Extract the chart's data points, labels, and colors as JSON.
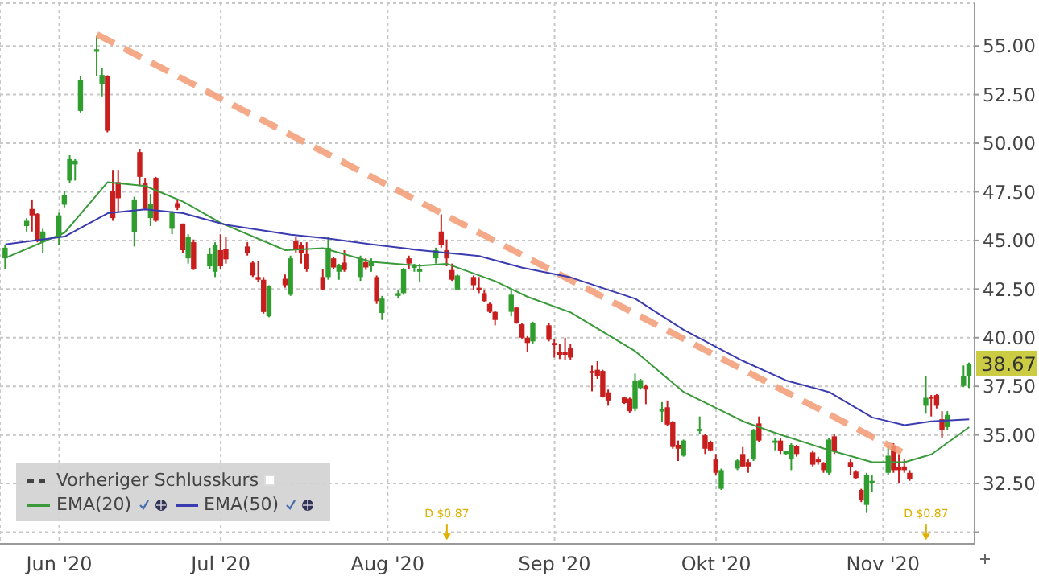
{
  "chart_data": {
    "type": "candlestick",
    "x": [
      "2020-05-22",
      "2020-05-26",
      "2020-05-27",
      "2020-05-28",
      "2020-05-29",
      "2020-06-01",
      "2020-06-02",
      "2020-06-03",
      "2020-06-04",
      "2020-06-05",
      "2020-06-08",
      "2020-06-09",
      "2020-06-10",
      "2020-06-11",
      "2020-06-12",
      "2020-06-15",
      "2020-06-16",
      "2020-06-17",
      "2020-06-18",
      "2020-06-19",
      "2020-06-22",
      "2020-06-23",
      "2020-06-24",
      "2020-06-25",
      "2020-06-26",
      "2020-06-29",
      "2020-06-30",
      "2020-07-01",
      "2020-07-02",
      "2020-07-06",
      "2020-07-07",
      "2020-07-08",
      "2020-07-09",
      "2020-07-10",
      "2020-07-13",
      "2020-07-14",
      "2020-07-15",
      "2020-07-16",
      "2020-07-17",
      "2020-07-20",
      "2020-07-21",
      "2020-07-22",
      "2020-07-23",
      "2020-07-24",
      "2020-07-27",
      "2020-07-28",
      "2020-07-29",
      "2020-07-30",
      "2020-07-31",
      "2020-08-03",
      "2020-08-04",
      "2020-08-05",
      "2020-08-06",
      "2020-08-07",
      "2020-08-10",
      "2020-08-11",
      "2020-08-12",
      "2020-08-13",
      "2020-08-14",
      "2020-08-17",
      "2020-08-18",
      "2020-08-19",
      "2020-08-20",
      "2020-08-21",
      "2020-08-24",
      "2020-08-25",
      "2020-08-26",
      "2020-08-27",
      "2020-08-28",
      "2020-08-31",
      "2020-09-01",
      "2020-09-02",
      "2020-09-03",
      "2020-09-04",
      "2020-09-08",
      "2020-09-09",
      "2020-09-10",
      "2020-09-11",
      "2020-09-14",
      "2020-09-15",
      "2020-09-16",
      "2020-09-17",
      "2020-09-18",
      "2020-09-21",
      "2020-09-22",
      "2020-09-23",
      "2020-09-24",
      "2020-09-25",
      "2020-09-28",
      "2020-09-29",
      "2020-09-30",
      "2020-10-01",
      "2020-10-02",
      "2020-10-05",
      "2020-10-06",
      "2020-10-07",
      "2020-10-08",
      "2020-10-09",
      "2020-10-12",
      "2020-10-13",
      "2020-10-14",
      "2020-10-15",
      "2020-10-16",
      "2020-10-19",
      "2020-10-20",
      "2020-10-21",
      "2020-10-22",
      "2020-10-23",
      "2020-10-26",
      "2020-10-27",
      "2020-10-28",
      "2020-10-29",
      "2020-10-30",
      "2020-11-02",
      "2020-11-03",
      "2020-11-04",
      "2020-11-05",
      "2020-11-06",
      "2020-11-09",
      "2020-11-10",
      "2020-11-11",
      "2020-11-12",
      "2020-11-13",
      "2020-11-16",
      "2020-11-17"
    ],
    "ohlc": [
      [
        44.08,
        44.77,
        43.53,
        44.63
      ],
      [
        45.74,
        46.15,
        45.46,
        46.01
      ],
      [
        46.62,
        47.11,
        45.46,
        46.29
      ],
      [
        46.37,
        46.4,
        44.91,
        44.99
      ],
      [
        44.91,
        45.6,
        44.36,
        45.46
      ],
      [
        45.18,
        46.43,
        44.77,
        46.29
      ],
      [
        46.84,
        47.53,
        46.7,
        47.34
      ],
      [
        48.08,
        49.38,
        47.94,
        49.18
      ],
      [
        48.91,
        49.18,
        48.08,
        49.1
      ],
      [
        51.66,
        53.46,
        51.58,
        53.24
      ],
      [
        54.7,
        55.52,
        53.46,
        54.83
      ],
      [
        53.04,
        53.87,
        52.41,
        53.51
      ],
      [
        53.46,
        53.5,
        50.56,
        50.64
      ],
      [
        47.53,
        48.63,
        46.01,
        46.15
      ],
      [
        48.0,
        48.63,
        46.43,
        47.17
      ],
      [
        45.41,
        47.25,
        44.69,
        47.11
      ],
      [
        49.54,
        49.71,
        47.8,
        48.27
      ],
      [
        47.94,
        48.22,
        46.56,
        46.62
      ],
      [
        46.15,
        47.39,
        45.74,
        46.89
      ],
      [
        48.22,
        48.27,
        45.96,
        46.01
      ],
      [
        45.6,
        46.51,
        45.32,
        46.43
      ],
      [
        46.92,
        47.11,
        46.56,
        46.7
      ],
      [
        45.87,
        45.87,
        44.36,
        44.5
      ],
      [
        44.08,
        45.32,
        43.81,
        45.18
      ],
      [
        44.91,
        45.05,
        43.48,
        43.53
      ],
      [
        43.67,
        44.63,
        43.53,
        44.3
      ],
      [
        43.39,
        44.91,
        43.12,
        44.77
      ],
      [
        44.5,
        45.32,
        43.53,
        43.67
      ],
      [
        44.58,
        45.18,
        43.81,
        44.03
      ],
      [
        44.69,
        44.91,
        44.22,
        44.36
      ],
      [
        43.86,
        43.94,
        43.12,
        43.2
      ],
      [
        43.12,
        43.94,
        42.84,
        42.98
      ],
      [
        42.98,
        43.12,
        41.24,
        41.32
      ],
      [
        41.1,
        42.7,
        41.05,
        42.65
      ],
      [
        43.03,
        43.25,
        42.57,
        42.7
      ],
      [
        42.21,
        44.22,
        42.15,
        44.08
      ],
      [
        45.0,
        45.19,
        44.36,
        44.58
      ],
      [
        44.77,
        44.91,
        43.81,
        44.36
      ],
      [
        44.3,
        44.91,
        43.39,
        43.53
      ],
      [
        43.12,
        43.53,
        42.43,
        42.48
      ],
      [
        43.12,
        45.19,
        42.98,
        44.63
      ],
      [
        44.08,
        44.13,
        43.53,
        43.61
      ],
      [
        43.39,
        43.8,
        42.98,
        43.72
      ],
      [
        43.86,
        44.5,
        43.39,
        43.48
      ],
      [
        43.12,
        44.22,
        42.92,
        44.08
      ],
      [
        43.89,
        44.08,
        43.48,
        43.61
      ],
      [
        43.67,
        44.08,
        43.39,
        43.94
      ],
      [
        43.12,
        43.2,
        41.74,
        41.88
      ],
      [
        41.27,
        42.15,
        40.91,
        42.01
      ],
      [
        42.15,
        42.48,
        42.01,
        42.29
      ],
      [
        42.29,
        43.58,
        42.21,
        43.53
      ],
      [
        44.08,
        44.22,
        43.53,
        43.81
      ],
      [
        43.59,
        43.8,
        43.39,
        43.72
      ],
      [
        43.39,
        43.8,
        42.84,
        43.53
      ],
      [
        44.08,
        44.63,
        43.81,
        44.5
      ],
      [
        45.46,
        46.34,
        44.63,
        44.77
      ],
      [
        44.5,
        45.05,
        43.67,
        44.08
      ],
      [
        43.48,
        43.81,
        42.92,
        42.98
      ],
      [
        42.48,
        43.25,
        42.43,
        43.2
      ],
      [
        43.12,
        43.2,
        42.43,
        42.7
      ],
      [
        42.57,
        43.12,
        42.29,
        42.43
      ],
      [
        42.29,
        42.43,
        41.83,
        41.88
      ],
      [
        41.74,
        41.8,
        41.27,
        41.33
      ],
      [
        41.33,
        41.38,
        40.64,
        40.91
      ],
      [
        41.33,
        42.43,
        41.1,
        42.21
      ],
      [
        41.55,
        41.6,
        40.72,
        40.77
      ],
      [
        40.69,
        40.77,
        39.95,
        40.0
      ],
      [
        40.0,
        40.08,
        39.26,
        39.73
      ],
      [
        39.81,
        40.83,
        39.67,
        40.77
      ],
      [
        40.64,
        40.77,
        39.81,
        39.89
      ],
      [
        39.73,
        39.95,
        38.98,
        39.62
      ],
      [
        39.26,
        39.67,
        38.9,
        39.12
      ],
      [
        39.26,
        40.0,
        38.84,
        39.12
      ],
      [
        39.45,
        39.67,
        38.84,
        38.98
      ],
      [
        38.29,
        38.57,
        37.24,
        38.18
      ],
      [
        38.35,
        38.79,
        37.88,
        38.02
      ],
      [
        38.29,
        38.35,
        36.92,
        36.97
      ],
      [
        37.19,
        37.33,
        36.5,
        36.77
      ],
      [
        36.92,
        36.97,
        36.59,
        36.64
      ],
      [
        36.86,
        36.92,
        36.14,
        36.22
      ],
      [
        36.36,
        38.15,
        36.22,
        37.8
      ],
      [
        37.41,
        37.88,
        37.33,
        37.82
      ],
      [
        37.52,
        37.6,
        36.58,
        37.33
      ],
      [
        36.2,
        36.69,
        35.67,
        36.31
      ],
      [
        36.42,
        36.77,
        35.48,
        35.53
      ],
      [
        35.67,
        35.72,
        34.29,
        34.38
      ],
      [
        34.49,
        34.71,
        33.66,
        34.29
      ],
      [
        33.93,
        34.76,
        33.88,
        34.71
      ],
      [
        35.2,
        35.95,
        35.04,
        35.31
      ],
      [
        34.98,
        35.04,
        34.02,
        34.29
      ],
      [
        34.65,
        34.71,
        34.15,
        34.21
      ],
      [
        33.74,
        34.02,
        32.92,
        33.05
      ],
      [
        32.23,
        33.27,
        32.17,
        33.19
      ],
      [
        33.27,
        33.74,
        33.19,
        33.69
      ],
      [
        34.02,
        34.38,
        33.33,
        33.38
      ],
      [
        33.61,
        33.74,
        33.05,
        33.38
      ],
      [
        33.74,
        35.31,
        33.66,
        35.26
      ],
      [
        35.59,
        35.95,
        34.65,
        34.71
      ],
      [
        34.59,
        34.82,
        34.21,
        34.71
      ],
      [
        34.71,
        34.85,
        34.02,
        34.16
      ],
      [
        34.02,
        34.2,
        33.95,
        34.16
      ],
      [
        33.74,
        34.57,
        33.19,
        34.49
      ],
      [
        34.43,
        34.49,
        33.88,
        34.02
      ],
      [
        34.1,
        34.21,
        33.38,
        33.47
      ],
      [
        33.74,
        33.88,
        33.47,
        33.61
      ],
      [
        33.55,
        33.61,
        33.05,
        33.19
      ],
      [
        33.05,
        34.82,
        32.92,
        34.76
      ],
      [
        34.93,
        35.04,
        34.02,
        34.16
      ],
      [
        33.61,
        33.74,
        32.92,
        33.33
      ],
      [
        33.11,
        33.19,
        32.72,
        32.78
      ],
      [
        32.17,
        32.23,
        31.54,
        31.67
      ],
      [
        31.4,
        33.05,
        30.99,
        32.92
      ],
      [
        32.5,
        32.92,
        32.09,
        32.64
      ],
      [
        33.05,
        34.43,
        32.92,
        33.93
      ],
      [
        34.43,
        34.57,
        33.05,
        33.19
      ],
      [
        33.33,
        34.02,
        32.5,
        33.19
      ],
      [
        33.38,
        33.74,
        33.05,
        33.19
      ],
      [
        33.05,
        33.19,
        32.64,
        32.72
      ],
      [
        36.5,
        38.02,
        36.09,
        36.91
      ],
      [
        36.97,
        37.05,
        35.95,
        36.86
      ],
      [
        37.05,
        37.1,
        36.36,
        36.5
      ],
      [
        35.81,
        36.22,
        34.85,
        35.26
      ],
      [
        35.4,
        36.22,
        35.26,
        36.03
      ],
      [
        37.52,
        38.57,
        37.46,
        38.02
      ],
      [
        38.02,
        38.72,
        37.41,
        38.67
      ]
    ],
    "series": [
      {
        "type": "line",
        "color": "#f29b73",
        "line_style": "dashed",
        "x": [
          "2020-06-08",
          "2020-11-06"
        ],
        "values": [
          55.6,
          33.9
        ]
      },
      {
        "type": "line",
        "name": "Vorheriger Schlusskurs",
        "color": "#444444",
        "line_style": "dashed",
        "values": [
          null,
          null,
          null,
          null,
          null,
          null,
          null,
          null,
          null,
          null,
          null,
          null,
          null,
          null,
          null,
          null,
          null,
          null,
          null,
          null,
          null,
          null,
          null,
          null,
          null,
          null,
          null,
          null,
          null,
          null,
          null,
          null,
          null,
          null,
          null,
          null,
          null,
          null,
          null,
          null,
          null,
          null,
          null,
          null,
          null,
          null,
          null,
          null,
          null,
          null,
          null,
          null,
          null,
          null,
          null,
          null,
          null,
          null,
          null,
          null,
          null,
          null,
          null,
          null,
          null,
          null,
          null,
          null,
          null,
          null,
          null,
          null,
          null,
          null,
          null,
          null,
          null,
          null,
          null,
          null,
          null,
          null,
          null,
          null,
          null,
          null,
          null,
          null,
          null,
          null,
          null,
          null,
          null,
          null,
          null,
          null,
          null,
          null,
          null,
          null,
          null,
          null,
          null,
          null,
          null,
          null,
          null,
          null,
          null,
          null,
          null,
          null,
          null,
          null,
          null,
          null,
          null,
          null,
          null,
          null,
          null,
          null,
          null,
          null,
          null
        ]
      },
      {
        "type": "line",
        "name": "EMA(20)",
        "color": "#3a9a3a",
        "line_style": "solid",
        "x": [
          "2020-05-22",
          "2020-06-02",
          "2020-06-10",
          "2020-06-17",
          "2020-06-24",
          "2020-07-01",
          "2020-07-13",
          "2020-07-20",
          "2020-07-29",
          "2020-08-07",
          "2020-08-12",
          "2020-08-21",
          "2020-08-27",
          "2020-09-04",
          "2020-09-16",
          "2020-09-25",
          "2020-10-06",
          "2020-10-12",
          "2020-10-21",
          "2020-10-30",
          "2020-11-05",
          "2020-11-10",
          "2020-11-17"
        ],
        "values": [
          44.1,
          45.4,
          48.0,
          47.8,
          47.0,
          45.9,
          44.5,
          44.6,
          43.9,
          43.7,
          43.8,
          42.9,
          42.1,
          41.3,
          39.3,
          37.2,
          35.7,
          35.1,
          34.3,
          33.6,
          33.6,
          34.0,
          35.4
        ]
      },
      {
        "type": "line",
        "name": "EMA(50)",
        "color": "#3b3bb0",
        "line_style": "solid",
        "x": [
          "2020-05-22",
          "2020-06-02",
          "2020-06-10",
          "2020-06-17",
          "2020-06-24",
          "2020-07-02",
          "2020-07-14",
          "2020-07-21",
          "2020-07-29",
          "2020-08-07",
          "2020-08-18",
          "2020-08-26",
          "2020-09-04",
          "2020-09-16",
          "2020-09-25",
          "2020-10-06",
          "2020-10-14",
          "2020-10-22",
          "2020-10-30",
          "2020-11-05",
          "2020-11-10",
          "2020-11-17"
        ],
        "values": [
          44.8,
          45.2,
          46.4,
          46.6,
          46.4,
          45.8,
          45.3,
          45.1,
          44.8,
          44.5,
          44.2,
          43.6,
          43.1,
          42.0,
          40.4,
          38.8,
          37.8,
          37.2,
          35.9,
          35.5,
          35.7,
          35.8
        ]
      }
    ],
    "xlim": [
      "2020-05-21",
      "2020-11-18"
    ],
    "xticks": [
      {
        "value": "2020-06-01",
        "label": "Jun '20"
      },
      {
        "value": "2020-07-01",
        "label": "Jul '20"
      },
      {
        "value": "2020-08-01",
        "label": "Aug '20"
      },
      {
        "value": "2020-09-01",
        "label": "Sep '20"
      },
      {
        "value": "2020-10-01",
        "label": "Okt '20"
      },
      {
        "value": "2020-11-01",
        "label": "Nov '20"
      }
    ],
    "ylim": [
      29.4,
      57.2
    ],
    "yticks": [
      {
        "value": 30,
        "label": null
      },
      {
        "value": 32.5,
        "label": "32.50"
      },
      {
        "value": 35,
        "label": "35.00"
      },
      {
        "value": 37.5,
        "label": "37.50"
      },
      {
        "value": 40,
        "label": "40.00"
      },
      {
        "value": 42.5,
        "label": "42.50"
      },
      {
        "value": 45,
        "label": "45.00"
      },
      {
        "value": 47.5,
        "label": "47.50"
      },
      {
        "value": 50,
        "label": "50.00"
      },
      {
        "value": 52.5,
        "label": "52.50"
      },
      {
        "value": 55,
        "label": "55.00"
      }
    ],
    "annotations": [
      {
        "text": "D $0.87",
        "x": "2020-08-12",
        "y": 29.6
      },
      {
        "text": "D $0.87",
        "x": "2020-11-09",
        "y": 29.6
      },
      {
        "text": "38.67",
        "x": "2020-11-18",
        "y": 38.67
      }
    ],
    "grid": true,
    "legend": "bottom left",
    "marker": "none"
  }
}
